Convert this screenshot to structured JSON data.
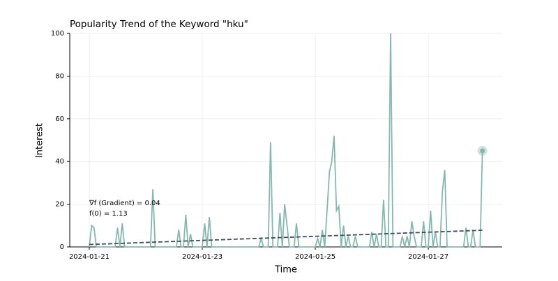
{
  "chart_data": {
    "type": "line",
    "title": "Popularity Trend of the Keyword \"hku\"",
    "xlabel": "Time",
    "ylabel": "Interest",
    "x": [
      0,
      1,
      2,
      3,
      4,
      5,
      6,
      7,
      8,
      9,
      10,
      11,
      12,
      13,
      14,
      15,
      16,
      17,
      18,
      19,
      20,
      21,
      22,
      23,
      24,
      25,
      26,
      27,
      28,
      29,
      30,
      31,
      32,
      33,
      34,
      35,
      36,
      37,
      38,
      39,
      40,
      41,
      42,
      43,
      44,
      45,
      46,
      47,
      48,
      49,
      50,
      51,
      52,
      53,
      54,
      55,
      56,
      57,
      58,
      59,
      60,
      61,
      62,
      63,
      64,
      65,
      66,
      67,
      68,
      69,
      70,
      71,
      72,
      73,
      74,
      75,
      76,
      77,
      78,
      79,
      80,
      81,
      82,
      83,
      84,
      85,
      86,
      87,
      88,
      89,
      90,
      91,
      92,
      93,
      94,
      95,
      96,
      97,
      98,
      99,
      100,
      101,
      102,
      103,
      104,
      105,
      106,
      107,
      108,
      109,
      110,
      111,
      112,
      113,
      114,
      115,
      116,
      117,
      118,
      119,
      120,
      121,
      122,
      123,
      124,
      125,
      126,
      127,
      128,
      129,
      130,
      131,
      132,
      133,
      134,
      135,
      136,
      137,
      138,
      139,
      140,
      141,
      142,
      143,
      144,
      145,
      146,
      147,
      148,
      149,
      150,
      151,
      152,
      153,
      154,
      155,
      156,
      157,
      158,
      159,
      160,
      161,
      162,
      163,
      164,
      165,
      166,
      167
    ],
    "series": [
      {
        "color": "#85b8ad",
        "values": [
          0,
          10,
          9,
          0,
          0,
          0,
          0,
          0,
          0,
          0,
          0,
          0,
          9,
          0,
          11,
          0,
          0,
          0,
          0,
          0,
          0,
          0,
          0,
          0,
          0,
          0,
          0,
          27,
          0,
          0,
          0,
          0,
          0,
          0,
          0,
          0,
          0,
          0,
          8,
          0,
          0,
          15,
          0,
          6,
          0,
          0,
          0,
          0,
          0,
          11,
          0,
          14,
          0,
          0,
          0,
          0,
          0,
          0,
          0,
          0,
          0,
          0,
          0,
          0,
          0,
          0,
          0,
          0,
          0,
          0,
          0,
          0,
          0,
          4,
          0,
          0,
          0,
          49,
          0,
          0,
          0,
          16,
          0,
          20,
          10,
          0,
          0,
          0,
          11,
          0,
          0,
          0,
          0,
          0,
          0,
          0,
          0,
          4,
          0,
          8,
          0,
          17,
          35,
          40,
          52,
          17,
          19,
          0,
          10,
          0,
          5,
          0,
          0,
          5,
          0,
          0,
          0,
          0,
          0,
          0,
          7,
          0,
          6,
          0,
          0,
          22,
          0,
          0,
          100,
          0,
          0,
          0,
          0,
          5,
          0,
          5,
          0,
          12,
          5,
          0,
          0,
          0,
          12,
          0,
          0,
          17,
          0,
          7,
          0,
          0,
          26,
          36,
          0,
          0,
          0,
          0,
          0,
          0,
          0,
          0,
          9,
          0,
          0,
          8,
          0,
          0,
          0,
          45
        ]
      }
    ],
    "trend": {
      "x": [
        0,
        167
      ],
      "values": [
        1.13,
        7.81
      ],
      "color": "#3d4f5c"
    },
    "annotations": [
      "∇f (Gradient) = 0.04",
      "f(0) = 1.13"
    ],
    "xlim": [
      -8.3,
      175.4
    ],
    "ylim": [
      0,
      100
    ],
    "xticks": [
      {
        "value": 0,
        "label": "2024-01-21"
      },
      {
        "value": 48,
        "label": "2024-01-23"
      },
      {
        "value": 96,
        "label": "2024-01-25"
      },
      {
        "value": 144,
        "label": "2024-01-27"
      }
    ],
    "yticks": [
      0,
      20,
      40,
      60,
      80,
      100
    ],
    "grid": true
  }
}
